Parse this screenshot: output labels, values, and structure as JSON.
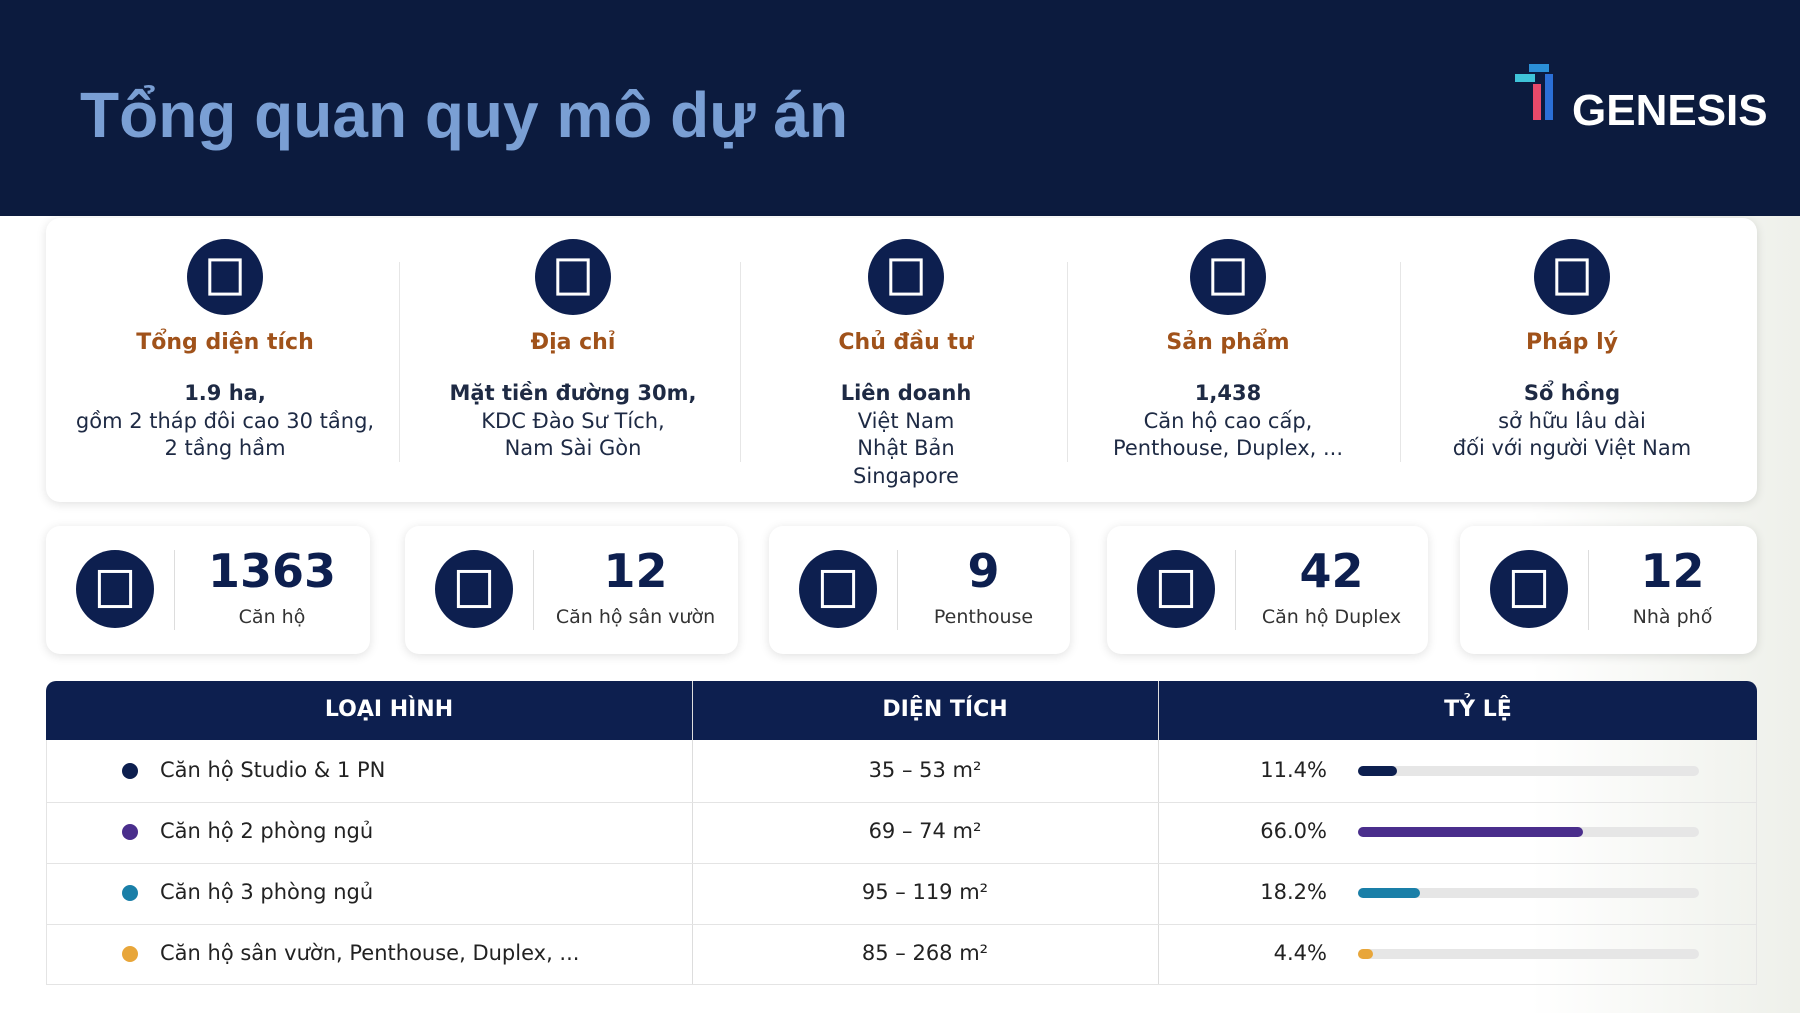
{
  "header": {
    "title": "Tổng quan quy mô dự án",
    "logo": "GENESIS"
  },
  "info_cards": [
    {
      "label": "Tổng diện tích",
      "lines": [
        "1.9 ha,",
        "gồm 2 tháp đôi cao 30 tầng,",
        "2 tầng hầm"
      ]
    },
    {
      "label": "Địa chỉ",
      "lines": [
        "Mặt tiền đường 30m,",
        "KDC Đào Sư Tích,",
        "Nam Sài Gòn"
      ]
    },
    {
      "label": "Chủ đầu tư",
      "lines": [
        "Liên doanh",
        "Việt Nam",
        "Nhật Bản",
        "Singapore"
      ]
    },
    {
      "label": "Sản phẩm",
      "lines": [
        "1,438",
        "Căn hộ cao cấp,",
        "Penthouse, Duplex, ..."
      ]
    },
    {
      "label": "Pháp lý",
      "lines": [
        "Sổ hồng",
        "sở hữu lâu dài",
        "đối với người Việt Nam"
      ]
    }
  ],
  "stats": [
    {
      "value": 1363,
      "label": "Căn hộ"
    },
    {
      "value": 12,
      "label": "Căn hộ sân vườn"
    },
    {
      "value": 9,
      "label": "Penthouse"
    },
    {
      "value": 42,
      "label": "Căn hộ Duplex"
    },
    {
      "value": 12,
      "label": "Nhà phố"
    }
  ],
  "table": {
    "headers": [
      "LOẠI HÌNH",
      "DIỆN TÍCH",
      "TỶ LỆ"
    ],
    "rows": [
      {
        "name": "Căn hộ Studio & 1 PN",
        "area": "35 – 53 m²",
        "share": 11.4,
        "share_label": "11.4%",
        "color": "#0d1f4f"
      },
      {
        "name": "Căn hộ 2 phòng ngủ",
        "area": "69 – 74 m²",
        "share": 66.0,
        "share_label": "66.0%",
        "color": "#4a2e8c"
      },
      {
        "name": "Căn hộ 3 phòng ngủ",
        "area": "95 – 119 m²",
        "share": 18.2,
        "share_label": "18.2%",
        "color": "#1a7fa8"
      },
      {
        "name": "Căn hộ sân vườn, Penthouse, Duplex, ...",
        "area": "85 – 268 m²",
        "share": 4.4,
        "share_label": "4.4%",
        "color": "#e8a63a"
      }
    ]
  }
}
